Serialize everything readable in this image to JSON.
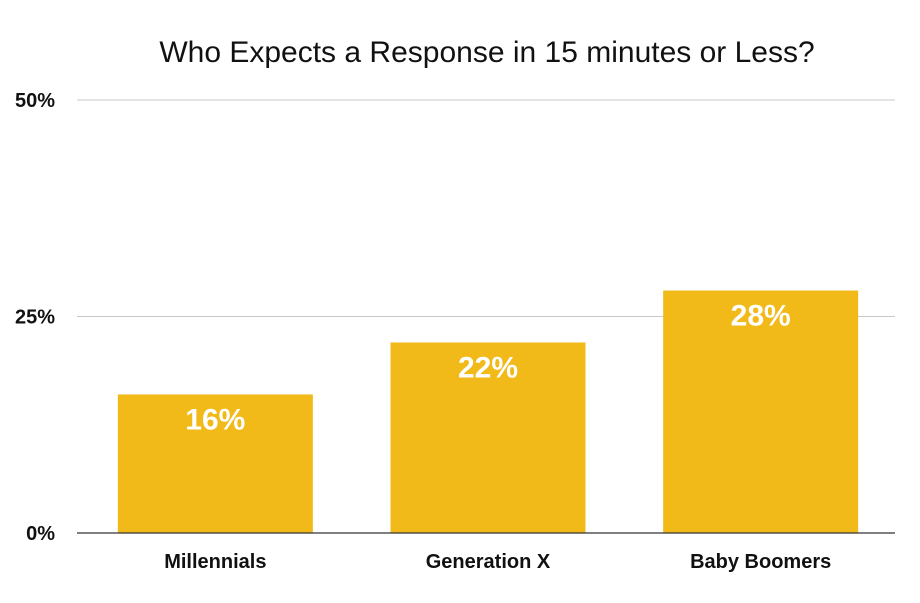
{
  "chart_data": {
    "type": "bar",
    "title": "Who Expects a Response in 15 minutes or Less?",
    "categories": [
      "Millennials",
      "Generation X",
      "Baby Boomers"
    ],
    "values": [
      16,
      22,
      28
    ],
    "data_labels": [
      "16%",
      "22%",
      "28%"
    ],
    "yticks": [
      0,
      25,
      50
    ],
    "ytick_labels": [
      "0%",
      "25%",
      "50%"
    ],
    "ylim": [
      0,
      50
    ],
    "grid": true,
    "legend": "none",
    "bar_color": "#F1BA19",
    "data_label_color": "#FFFFFF"
  }
}
